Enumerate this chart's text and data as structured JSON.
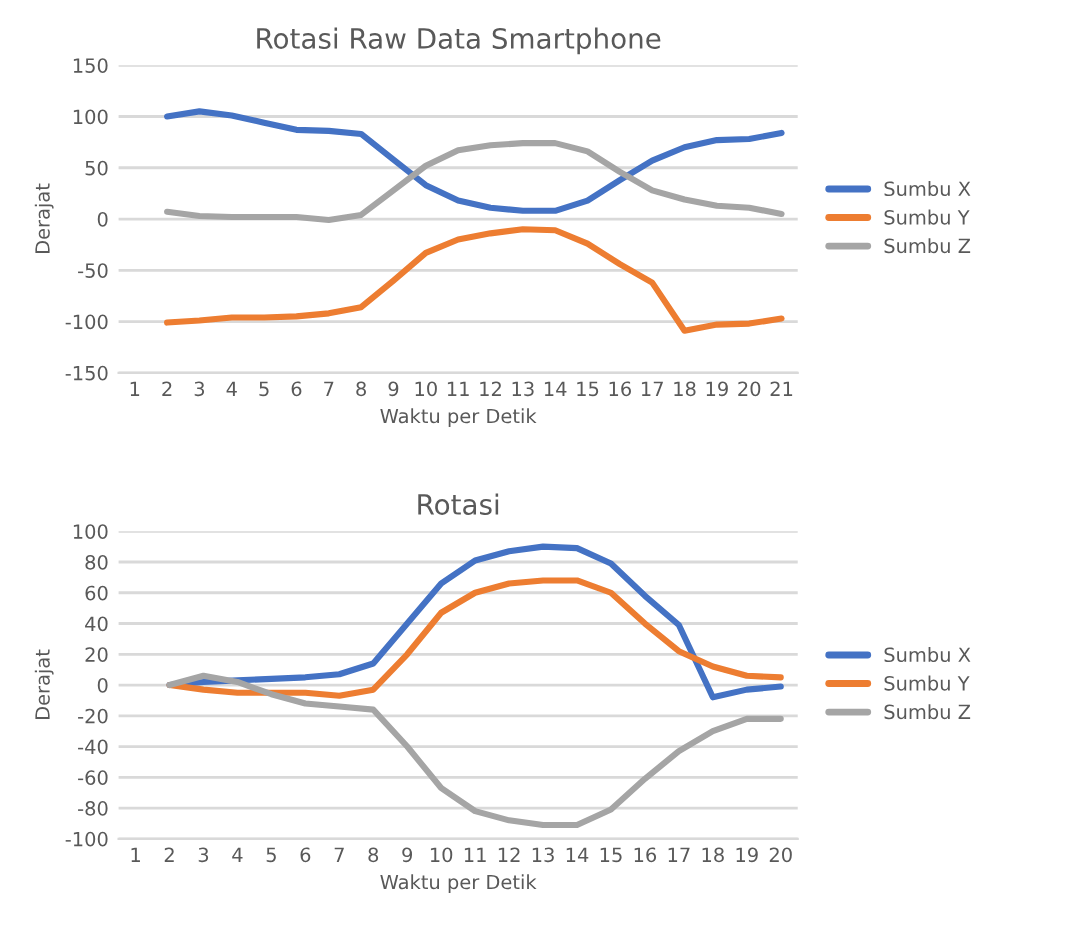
{
  "chart_data": [
    {
      "type": "line",
      "title": "Rotasi Raw Data Smartphone",
      "xlabel": "Waktu per Detik",
      "ylabel": "Derajat",
      "categories": [
        "1",
        "2",
        "3",
        "4",
        "5",
        "6",
        "7",
        "8",
        "9",
        "10",
        "11",
        "12",
        "13",
        "14",
        "15",
        "16",
        "17",
        "18",
        "19",
        "20",
        "21"
      ],
      "series": [
        {
          "name": "Sumbu X",
          "color": "#4472c4",
          "values": [
            null,
            100,
            105,
            101,
            94,
            87,
            86,
            83,
            58,
            33,
            18,
            11,
            8,
            8,
            18,
            38,
            57,
            70,
            77,
            78,
            84
          ]
        },
        {
          "name": "Sumbu Y",
          "color": "#ed7d31",
          "values": [
            null,
            -101,
            -99,
            -96,
            -96,
            -95,
            -92,
            -86,
            -60,
            -33,
            -20,
            -14,
            -10,
            -11,
            -24,
            -44,
            -62,
            -109,
            -103,
            -102,
            -97
          ]
        },
        {
          "name": "Sumbu Z",
          "color": "#a5a5a5",
          "values": [
            null,
            7,
            3,
            2,
            2,
            2,
            -1,
            4,
            28,
            52,
            67,
            72,
            74,
            74,
            66,
            46,
            28,
            19,
            13,
            11,
            5
          ]
        }
      ],
      "ylim": [
        -150,
        150
      ],
      "yticks": [
        -150,
        -100,
        -50,
        0,
        50,
        100,
        150
      ],
      "grid": "y",
      "legend": "right",
      "marker": "none",
      "line_style": "solid"
    },
    {
      "type": "line",
      "title": "Rotasi",
      "xlabel": "Waktu per Detik",
      "ylabel": "Derajat",
      "categories": [
        "1",
        "2",
        "3",
        "4",
        "5",
        "6",
        "7",
        "8",
        "9",
        "10",
        "11",
        "12",
        "13",
        "14",
        "15",
        "16",
        "17",
        "18",
        "19",
        "20"
      ],
      "series": [
        {
          "name": "Sumbu X",
          "color": "#4472c4",
          "values": [
            null,
            0,
            2,
            3,
            4,
            5,
            7,
            14,
            40,
            66,
            81,
            87,
            90,
            89,
            79,
            58,
            39,
            -8,
            -3,
            -1
          ]
        },
        {
          "name": "Sumbu Y",
          "color": "#ed7d31",
          "values": [
            null,
            0,
            -3,
            -5,
            -5,
            -5,
            -7,
            -3,
            20,
            47,
            60,
            66,
            68,
            68,
            60,
            40,
            22,
            12,
            6,
            5
          ]
        },
        {
          "name": "Sumbu Z",
          "color": "#a5a5a5",
          "values": [
            null,
            0,
            6,
            2,
            -6,
            -12,
            -14,
            -16,
            -40,
            -67,
            -82,
            -88,
            -91,
            -91,
            -81,
            -61,
            -43,
            -30,
            -22,
            -22
          ]
        }
      ],
      "ylim": [
        -100,
        100
      ],
      "yticks": [
        -100,
        -80,
        -60,
        -40,
        -20,
        0,
        20,
        40,
        60,
        80,
        100
      ],
      "grid": "y",
      "legend": "right",
      "marker": "none",
      "line_style": "solid"
    }
  ]
}
